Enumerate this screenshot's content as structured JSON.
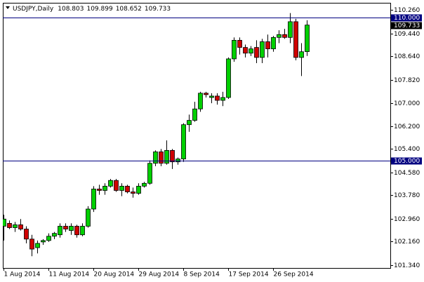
{
  "chart_data": {
    "type": "candlestick",
    "symbol": "USDJPY,Daily",
    "categories": [
      "1 Aug 2014",
      null,
      null,
      null,
      null,
      null,
      null,
      null,
      "11 Aug 2014",
      null,
      null,
      null,
      null,
      null,
      null,
      null,
      "20 Aug 2014",
      null,
      null,
      null,
      null,
      null,
      null,
      null,
      "29 Aug 2014",
      null,
      null,
      null,
      null,
      null,
      null,
      null,
      "8 Sep 2014",
      null,
      null,
      null,
      null,
      null,
      null,
      null,
      "17 Sep 2014",
      null,
      null,
      null,
      null,
      null,
      null,
      null,
      "26 Sep 2014",
      null,
      null,
      null,
      null,
      null,
      null
    ],
    "open": [
      102.7,
      102.8,
      102.65,
      102.75,
      102.6,
      102.25,
      101.95,
      102.15,
      102.2,
      102.35,
      102.4,
      102.7,
      102.55,
      102.7,
      102.4,
      102.7,
      103.3,
      104.0,
      103.95,
      104.1,
      104.3,
      103.95,
      104.1,
      103.9,
      103.85,
      104.1,
      104.2,
      104.9,
      105.3,
      104.9,
      105.35,
      104.95,
      105.05,
      106.25,
      106.4,
      106.8,
      107.35,
      107.2,
      107.25,
      107.1,
      107.2,
      108.55,
      109.2,
      108.95,
      108.75,
      108.95,
      108.6,
      109.15,
      108.9,
      109.3,
      109.4,
      109.3,
      109.85,
      108.6,
      108.803
    ],
    "high": [
      103.1,
      102.9,
      102.85,
      102.95,
      102.7,
      102.4,
      102.2,
      102.25,
      102.45,
      102.5,
      102.8,
      102.8,
      102.8,
      102.75,
      102.8,
      103.4,
      104.1,
      104.15,
      104.2,
      104.35,
      104.35,
      104.2,
      104.15,
      104.05,
      104.2,
      104.25,
      105.0,
      105.35,
      105.4,
      105.7,
      105.4,
      105.1,
      106.3,
      106.6,
      107.05,
      107.4,
      107.4,
      107.35,
      107.35,
      107.4,
      108.6,
      109.3,
      109.3,
      109.05,
      109.0,
      109.2,
      109.25,
      109.4,
      109.35,
      109.55,
      109.6,
      110.15,
      109.95,
      109.1,
      109.899
    ],
    "low": [
      102.2,
      102.6,
      102.5,
      102.55,
      102.1,
      101.65,
      101.75,
      102.05,
      102.15,
      102.25,
      102.3,
      102.5,
      102.4,
      102.3,
      102.35,
      102.65,
      103.2,
      103.8,
      103.8,
      104.05,
      103.9,
      103.75,
      103.85,
      103.7,
      103.8,
      104.05,
      104.15,
      104.8,
      104.8,
      104.85,
      104.7,
      104.85,
      104.95,
      106.0,
      106.35,
      106.7,
      107.2,
      107.0,
      106.95,
      106.9,
      107.15,
      108.45,
      108.7,
      108.6,
      108.65,
      108.4,
      108.4,
      108.6,
      108.8,
      109.1,
      109.25,
      109.1,
      108.5,
      107.95,
      108.652
    ],
    "close": [
      102.95,
      102.65,
      102.75,
      102.6,
      102.25,
      101.9,
      102.1,
      102.2,
      102.35,
      102.45,
      102.7,
      102.6,
      102.7,
      102.4,
      102.7,
      103.3,
      104.0,
      103.95,
      104.1,
      104.3,
      103.95,
      104.1,
      103.9,
      103.85,
      104.1,
      104.2,
      104.9,
      105.3,
      104.9,
      105.35,
      104.95,
      105.05,
      106.25,
      106.4,
      106.8,
      107.35,
      107.3,
      107.25,
      107.1,
      107.2,
      108.55,
      109.2,
      108.95,
      108.75,
      108.9,
      108.6,
      109.15,
      108.9,
      109.3,
      109.4,
      109.3,
      109.85,
      108.6,
      108.8,
      109.733
    ],
    "up_color": "#00d000",
    "down_color": "#d00000",
    "level_color": "#000080",
    "levels": [
      {
        "value": 110,
        "label": "110.000"
      },
      {
        "value": 105,
        "label": "105.000"
      }
    ],
    "ylim": [
      101.24,
      110.51
    ],
    "yticks": [
      {
        "value": 101.34,
        "label": "101.340"
      },
      {
        "value": 102.16,
        "label": "102.160"
      },
      {
        "value": 102.96,
        "label": "102.960"
      },
      {
        "value": 103.78,
        "label": "103.780"
      },
      {
        "value": 104.58,
        "label": "104.580"
      },
      {
        "value": 105.4,
        "label": "105.400"
      },
      {
        "value": 106.2,
        "label": "106.200"
      },
      {
        "value": 107,
        "label": "107.000"
      },
      {
        "value": 107.82,
        "label": "107.820"
      },
      {
        "value": 108.64,
        "label": "108.640"
      },
      {
        "value": 109.44,
        "label": "109.440"
      },
      {
        "value": 110.26,
        "label": "110.260"
      }
    ]
  }
}
